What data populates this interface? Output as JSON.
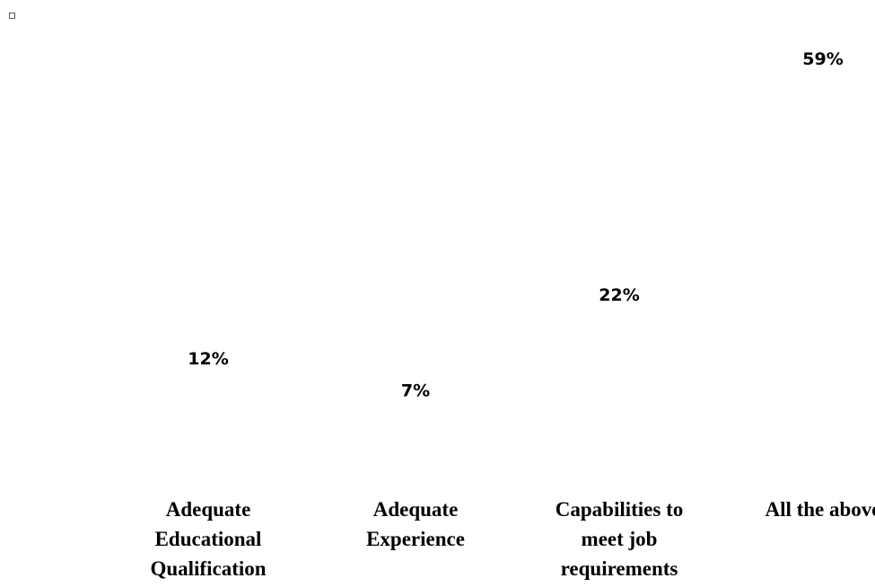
{
  "chart_data": {
    "type": "bar",
    "categories": [
      [
        "Adequate",
        "Educational",
        "Qualification"
      ],
      [
        "Adequate",
        "Experience"
      ],
      [
        "Capabilities to",
        "meet job",
        "requirements"
      ],
      [
        "All the above"
      ]
    ],
    "values": [
      12,
      7,
      22,
      59
    ],
    "value_labels": [
      "12%",
      "7%",
      "22%",
      "59%"
    ],
    "title": "",
    "xlabel": "",
    "ylabel": "",
    "ylim": [
      0,
      59
    ],
    "grid": false,
    "legend": "none",
    "bars_visible": false
  },
  "marker": {
    "icon": "small-square-icon"
  }
}
